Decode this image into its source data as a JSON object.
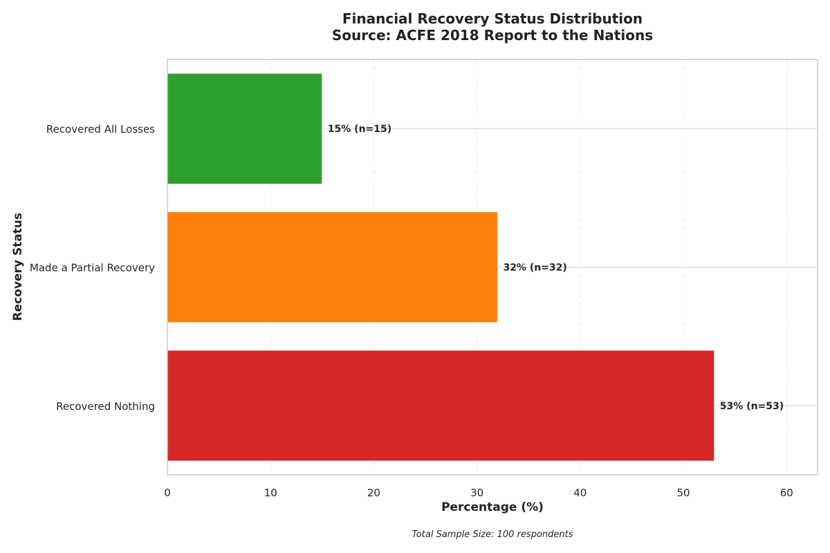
{
  "chart_data": {
    "type": "bar",
    "orientation": "horizontal",
    "title_line1": "Financial Recovery Status Distribution",
    "title_line2": "Source: ACFE 2018 Report to the Nations",
    "xlabel": "Percentage (%)",
    "ylabel": "Recovery Status",
    "xlim": [
      0,
      63
    ],
    "x_ticks": [
      0,
      10,
      20,
      30,
      40,
      50,
      60
    ],
    "grid": true,
    "categories": [
      "Recovered All Losses",
      "Made a Partial Recovery",
      "Recovered Nothing"
    ],
    "values": [
      15,
      32,
      53
    ],
    "counts": [
      15,
      32,
      53
    ],
    "data_labels": [
      "15% (n=15)",
      "32% (n=32)",
      "53% (n=53)"
    ],
    "colors": [
      "#2ca02c",
      "#ff7f0e",
      "#d62728"
    ],
    "footnote": "Total Sample Size: 100 respondents"
  }
}
